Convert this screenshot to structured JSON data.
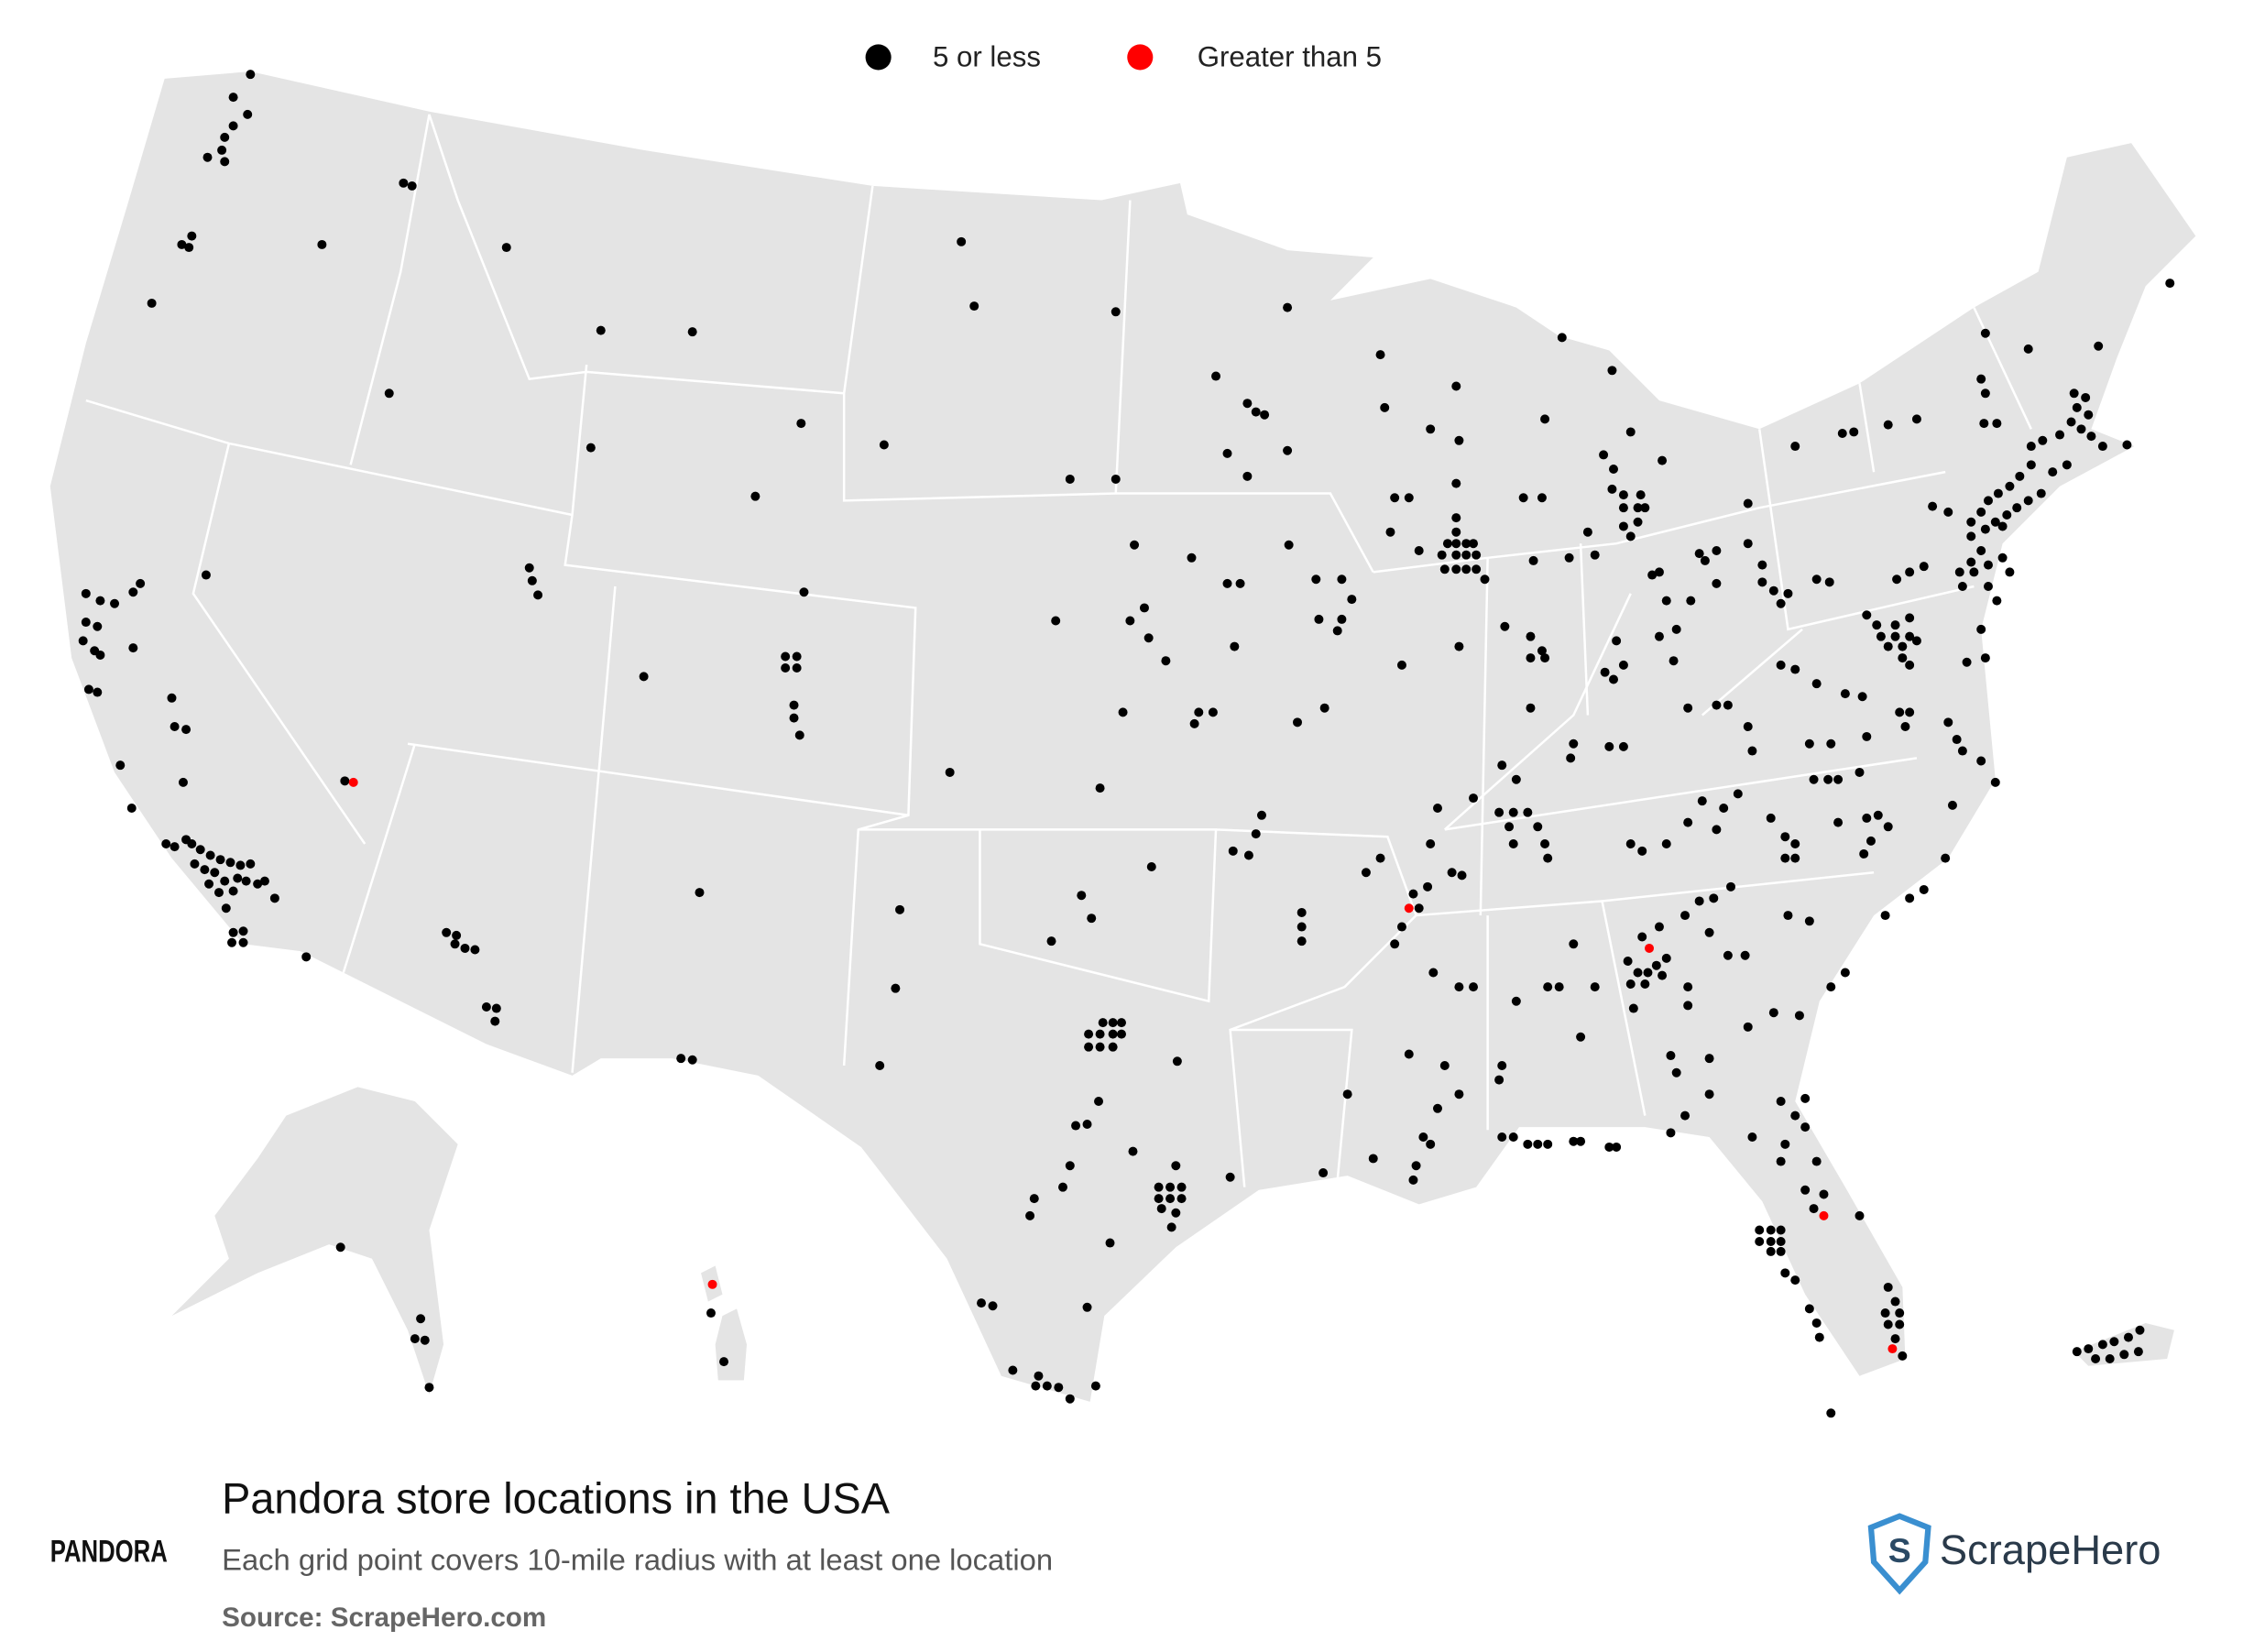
{
  "legend": {
    "items": [
      {
        "label": "5 or less",
        "color": "#000000"
      },
      {
        "label": "Greater than 5",
        "color": "#ff0000"
      }
    ]
  },
  "title": "Pandora store locations in the USA",
  "subtitle": "Each grid point covers 10-mile radius with at least one location",
  "source": "Source: ScrapeHero.com",
  "brand": "PANDORA",
  "publisher": "ScrapeHero"
}
